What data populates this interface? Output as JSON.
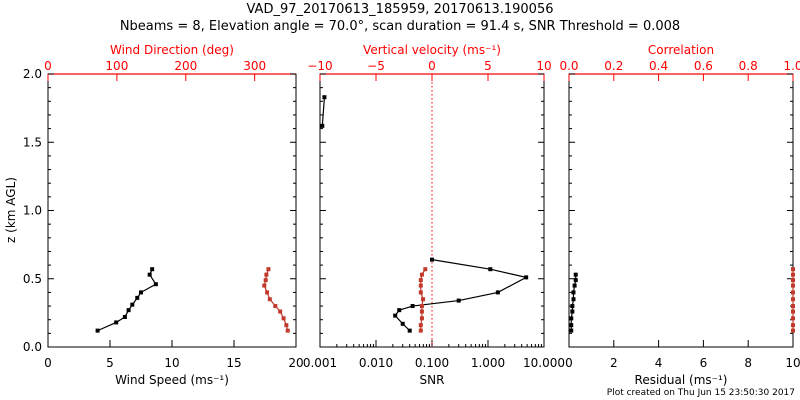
{
  "title": "VAD_97_20170613_185959, 20170613.190056",
  "subtitle": "Nbeams = 8, Elevation angle = 70.0°, scan duration = 91.4 s, SNR Threshold = 0.008",
  "footer": "Plot created on Thu Jun 15 23:50:30 2017",
  "colors": {
    "primary": "#000000",
    "accent": "#c0392b",
    "axis_red": "#ff0000"
  },
  "chart_data": [
    {
      "type": "line",
      "panel": "wind",
      "ylabel": "z (km AGL)",
      "ylim": [
        0,
        2
      ],
      "yticks": [
        "0.0",
        "0.5",
        "1.0",
        "1.5",
        "2.0"
      ],
      "xlabel_bottom": "Wind Speed (ms⁻¹)",
      "xlim_bottom": [
        0,
        20
      ],
      "xticks_bottom": [
        "0",
        "5",
        "10",
        "15",
        "20"
      ],
      "xlabel_top": "Wind Direction (deg)",
      "xlim_top": [
        0,
        360
      ],
      "xticks_top": [
        "0",
        "100",
        "200",
        "300"
      ],
      "series": [
        {
          "axis": "bottom",
          "color": "#000000",
          "x": [
            4.0,
            5.5,
            6.2,
            6.5,
            6.8,
            7.2,
            7.5,
            8.7,
            8.2,
            8.4
          ],
          "y": [
            0.12,
            0.18,
            0.22,
            0.27,
            0.31,
            0.36,
            0.4,
            0.46,
            0.53,
            0.57
          ]
        },
        {
          "axis": "top",
          "color": "#c0392b",
          "x": [
            348,
            346,
            342,
            337,
            330,
            322,
            318,
            314,
            316,
            317,
            320
          ],
          "y": [
            0.12,
            0.16,
            0.21,
            0.26,
            0.3,
            0.35,
            0.4,
            0.45,
            0.49,
            0.53,
            0.57
          ]
        }
      ]
    },
    {
      "type": "line",
      "panel": "snr",
      "ylim": [
        0,
        2
      ],
      "xlabel_bottom": "SNR",
      "xscale_bottom": "log",
      "xlim_bottom": [
        0.001,
        10
      ],
      "xticks_bottom": [
        "0.001",
        "0.010",
        "0.100",
        "1.000",
        "10.000"
      ],
      "xlabel_top": "Vertical velocity (ms⁻¹)",
      "xlim_top": [
        -10,
        10
      ],
      "xticks_top": [
        "−10",
        "−5",
        "0",
        "5",
        "10"
      ],
      "zero_line_top": 0,
      "series": [
        {
          "axis": "bottom",
          "color": "#000000",
          "x": [
            0.0011,
            0.0012,
            0.04,
            0.03,
            0.022,
            0.026,
            0.045,
            0.3,
            1.5,
            4.8,
            1.1,
            0.1
          ],
          "y": [
            1.62,
            1.83,
            0.12,
            0.17,
            0.23,
            0.27,
            0.3,
            0.34,
            0.4,
            0.51,
            0.57,
            0.64
          ]
        },
        {
          "axis": "top",
          "color": "#c0392b",
          "x": [
            -1.0,
            -1.0,
            -0.9,
            -0.9,
            -0.9,
            -0.8,
            -1.0,
            -1.0,
            -1.0,
            -0.9,
            -0.6
          ],
          "y": [
            0.12,
            0.16,
            0.21,
            0.26,
            0.3,
            0.35,
            0.4,
            0.45,
            0.49,
            0.53,
            0.57
          ]
        }
      ]
    },
    {
      "type": "line",
      "panel": "residual",
      "ylim": [
        0,
        2
      ],
      "xlabel_bottom": "Residual (ms⁻¹)",
      "xlim_bottom": [
        0,
        10
      ],
      "xticks_bottom": [
        "0",
        "2",
        "4",
        "6",
        "8",
        "10"
      ],
      "xlabel_top": "Correlation",
      "xlim_top": [
        0,
        1
      ],
      "xticks_top": [
        "0.0",
        "0.2",
        "0.4",
        "0.6",
        "0.8",
        "1.0"
      ],
      "series": [
        {
          "axis": "bottom",
          "color": "#000000",
          "x": [
            0.1,
            0.1,
            0.1,
            0.15,
            0.15,
            0.2,
            0.2,
            0.25,
            0.3,
            0.3
          ],
          "y": [
            0.12,
            0.16,
            0.21,
            0.26,
            0.3,
            0.35,
            0.4,
            0.45,
            0.49,
            0.53
          ]
        },
        {
          "axis": "top",
          "color": "#c0392b",
          "x": [
            1.0,
            1.0,
            1.0,
            1.0,
            1.0,
            1.0,
            1.0,
            1.0,
            1.0,
            1.0,
            1.0
          ],
          "y": [
            0.12,
            0.16,
            0.21,
            0.26,
            0.3,
            0.35,
            0.4,
            0.45,
            0.49,
            0.53,
            0.57
          ]
        }
      ]
    }
  ]
}
